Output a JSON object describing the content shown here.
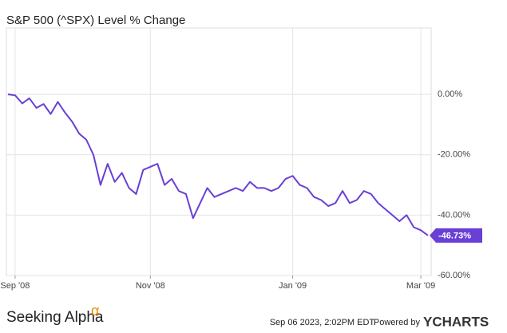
{
  "chart_data": {
    "type": "line",
    "title": "S&P 500 (^SPX) Level % Change",
    "categories": [
      null,
      "Sep '08",
      null,
      null,
      null,
      null,
      null,
      null,
      null,
      null,
      null,
      null,
      null,
      null,
      null,
      null,
      null,
      null,
      null,
      null,
      "Nov '08",
      null,
      null,
      null,
      null,
      null,
      null,
      null,
      null,
      null,
      null,
      null,
      null,
      null,
      null,
      null,
      null,
      null,
      null,
      null,
      "Jan '09",
      null,
      null,
      null,
      null,
      null,
      null,
      null,
      null,
      null,
      null,
      null,
      null,
      null,
      null,
      null,
      null,
      null,
      "Mar '09",
      null
    ],
    "series": [
      {
        "name": "S&P 500 (^SPX) Level % Change",
        "color": "#6a3fd6",
        "values": [
          0,
          -0.3,
          -3,
          -1.3,
          -4.5,
          -3.2,
          -6.5,
          -2.5,
          -6,
          -9,
          -13,
          -15,
          -20,
          -30,
          -23,
          -29,
          -26,
          -31,
          -33,
          -25,
          -24,
          -23,
          -30,
          -28,
          -32,
          -33,
          -41,
          -36,
          -31,
          -34,
          -33,
          -32,
          -31,
          -32,
          -29,
          -31,
          -31,
          -32,
          -31,
          -28,
          -27,
          -30,
          -31,
          -34,
          -35,
          -37,
          -36,
          -32,
          -36,
          -35,
          -32,
          -33,
          -36,
          -38,
          -40,
          -42,
          -40,
          -44,
          -45,
          -46.73
        ]
      }
    ],
    "end_label": "-46.73%",
    "ylim": [
      -60,
      22
    ],
    "yticks": [
      {
        "value": 0,
        "label": "0.00%"
      },
      {
        "value": -20,
        "label": "-20.00%"
      },
      {
        "value": -40,
        "label": "-40.00%"
      },
      {
        "value": -60,
        "label": "-60.00%"
      }
    ],
    "grid": true
  },
  "footer": {
    "brand": "Seeking Alpha",
    "brand_symbol": "α",
    "timestamp": "Sep 06 2023, 2:02PM EDT.",
    "powered": "Powered by",
    "provider": "YCHARTS"
  }
}
